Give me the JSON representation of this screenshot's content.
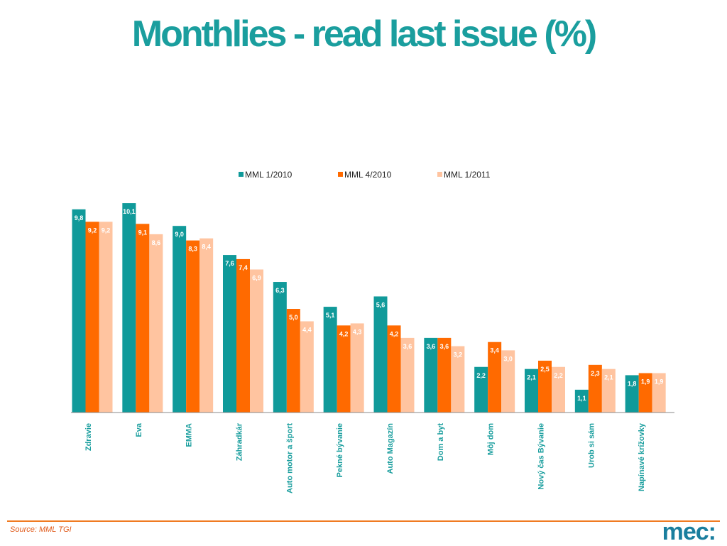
{
  "page": {
    "source": "Source: MML TGI",
    "logo": "mec:"
  },
  "colors": {
    "title": "#1a9e9e",
    "series": [
      "#109a9a",
      "#ff6a00",
      "#ffc4a0"
    ],
    "footer_line": "#f07b22",
    "source_text": "#e05a1a",
    "logo": "#1a7e9e",
    "category_label": "#1a9e9e"
  },
  "chart_data": {
    "type": "bar",
    "title": "Monthlies - read last issue (%)",
    "xlabel": "",
    "ylabel": "",
    "ylim": [
      0,
      10.5
    ],
    "grid": false,
    "legend_position": "top-center",
    "categories": [
      "Zdravie",
      "Eva",
      "EMMA",
      "Záhradkár",
      "Auto motor a šport",
      "Pekné bývanie",
      "Auto Magazín",
      "Dom a byt",
      "Môj dom",
      "Nový čas Bývanie",
      "Urob si sám",
      "Napínavé krížovky"
    ],
    "series": [
      {
        "name": "MML 1/2010",
        "values": [
          9.8,
          10.1,
          9.0,
          7.6,
          6.3,
          5.1,
          5.6,
          3.6,
          2.2,
          2.1,
          1.1,
          1.8
        ],
        "labels": [
          "9,8",
          "10,1",
          "9,0",
          "7,6",
          "6,3",
          "5,1",
          "5,6",
          "3,6",
          "2,2",
          "2,1",
          "1,1",
          "1,8"
        ]
      },
      {
        "name": "MML 4/2010",
        "values": [
          9.2,
          9.1,
          8.3,
          7.4,
          5.0,
          4.2,
          4.2,
          3.6,
          3.4,
          2.5,
          2.3,
          1.9
        ],
        "labels": [
          "9,2",
          "9,1",
          "8,3",
          "7,4",
          "5,0",
          "4,2",
          "4,2",
          "3,6",
          "3,4",
          "2,5",
          "2,3",
          "1,9"
        ]
      },
      {
        "name": "MML 1/2011",
        "values": [
          9.2,
          8.6,
          8.4,
          6.9,
          4.4,
          4.3,
          3.6,
          3.2,
          3.0,
          2.2,
          2.1,
          1.9
        ],
        "labels": [
          "9,2",
          "8,6",
          "8,4",
          "6,9",
          "4,4",
          "4,3",
          "3,6",
          "3,2",
          "3,0",
          "2,2",
          "2,1",
          "1,9"
        ]
      }
    ]
  }
}
